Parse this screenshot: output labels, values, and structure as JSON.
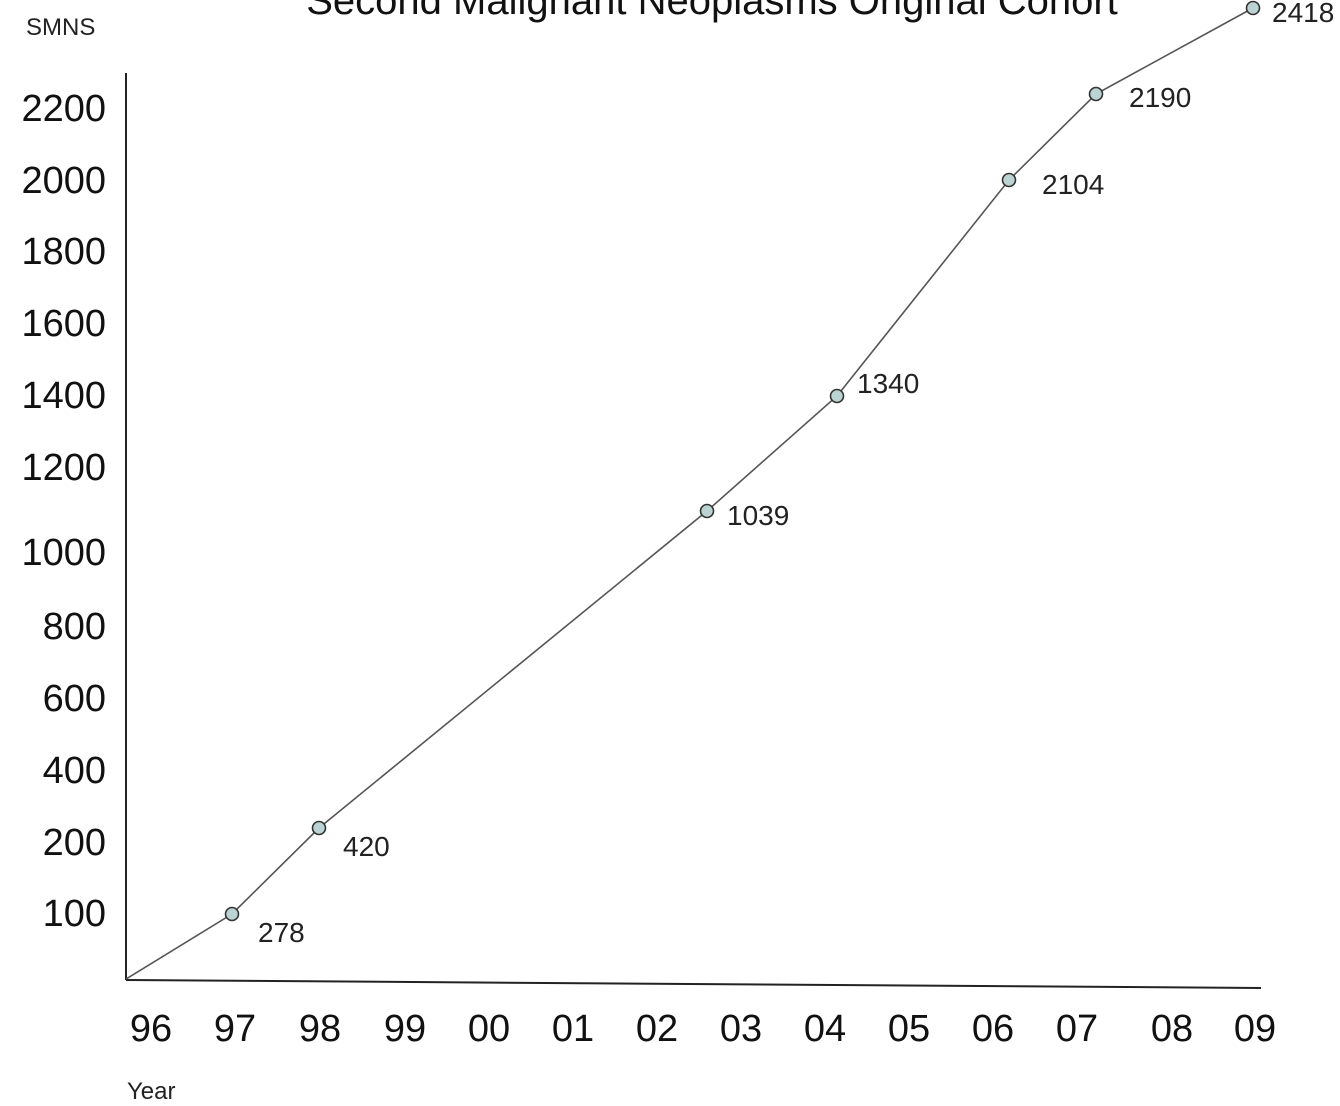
{
  "chart_data": {
    "type": "line",
    "title": "Second Malignant Neoplasms  Original Cohort",
    "ylabel": "SMNS",
    "xlabel": "Year",
    "x_ticks": [
      "96",
      "97",
      "98",
      "99",
      "00",
      "01",
      "02",
      "03",
      "04",
      "05",
      "06",
      "07",
      "08",
      "09"
    ],
    "y_ticks": [
      "100",
      "200",
      "400",
      "600",
      "800",
      "1000",
      "1200",
      "1400",
      "1600",
      "1800",
      "2000",
      "2200"
    ],
    "grid": false,
    "legend": "none",
    "series": [
      {
        "points": [
          {
            "x": "96",
            "y": 0,
            "label": ""
          },
          {
            "x": "97",
            "y": 278,
            "label": "278"
          },
          {
            "x": "98",
            "y": 420,
            "label": "420"
          },
          {
            "x": "03",
            "y": 1039,
            "label": "1039"
          },
          {
            "x": "04",
            "y": 1340,
            "label": "1340"
          },
          {
            "x": "06",
            "y": 2104,
            "label": "2104"
          },
          {
            "x": "07",
            "y": 2190,
            "label": "2190"
          },
          {
            "x": "09",
            "y": 2418,
            "label": "2418"
          }
        ]
      }
    ],
    "colors": {
      "line": "#555555",
      "marker_fill": "#bcd3d3",
      "marker_stroke": "#333333",
      "axis": "#222222"
    }
  }
}
